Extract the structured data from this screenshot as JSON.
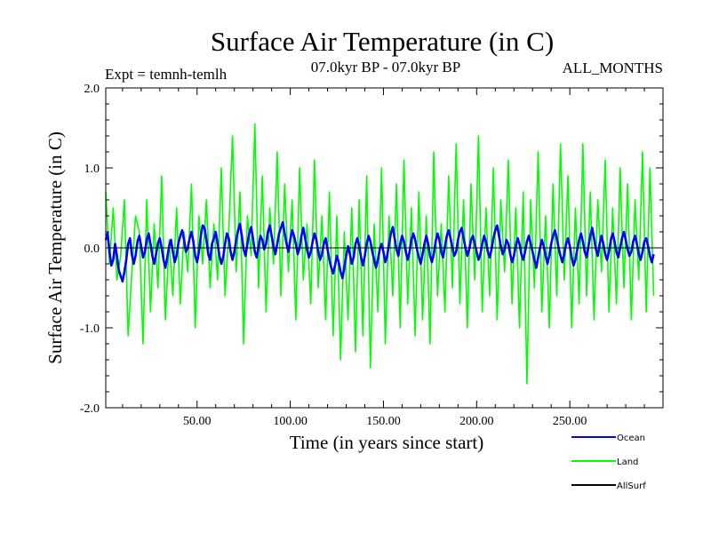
{
  "chart_data": {
    "type": "line",
    "title": "Surface Air Temperature (in C)",
    "subtitle_left": "Expt = temnh-temlh",
    "subtitle_center": "07.0kyr BP - 07.0kyr BP",
    "subtitle_right": "ALL_MONTHS",
    "xlabel": "Time (in years since start)",
    "ylabel": "Surface Air Temperature (in C)",
    "xlim": [
      1,
      300
    ],
    "ylim": [
      -2.0,
      2.0
    ],
    "x_ticks": [
      50,
      100,
      150,
      200,
      250
    ],
    "x_tick_labels": [
      "50.00",
      "100.00",
      "150.00",
      "200.00",
      "250.00"
    ],
    "y_ticks": [
      2.0,
      1.0,
      0.0,
      -1.0,
      -2.0
    ],
    "y_tick_labels": [
      "2.0",
      "1.0",
      "0.0",
      "-1.0",
      "-2.0"
    ],
    "zero_line": true,
    "legend_placement": "bottom-right",
    "series": [
      {
        "name": "Land",
        "color": "#00ff00",
        "x_start": 1,
        "x_step": 2,
        "values": [
          0.7,
          -0.2,
          0.5,
          -0.4,
          -0.1,
          0.6,
          -1.1,
          -0.3,
          0.4,
          0.2,
          -1.2,
          0.6,
          -0.8,
          0.3,
          -0.5,
          0.9,
          -0.9,
          0.1,
          -0.6,
          0.5,
          -0.7,
          0.2,
          -0.3,
          0.8,
          -1.0,
          0.4,
          -0.2,
          0.6,
          -0.5,
          0.3,
          -0.4,
          1.0,
          -0.6,
          0.2,
          1.4,
          -0.3,
          0.7,
          -1.2,
          0.4,
          -0.1,
          1.55,
          -0.5,
          0.9,
          -0.8,
          0.5,
          -0.2,
          1.2,
          -0.6,
          0.8,
          -0.3,
          0.6,
          -0.9,
          1.0,
          -0.4,
          0.3,
          -0.7,
          1.1,
          -0.5,
          0.4,
          -0.9,
          0.7,
          -1.1,
          0.4,
          -1.4,
          0.2,
          -0.9,
          0.5,
          -1.3,
          0.6,
          -1.1,
          0.9,
          -1.5,
          0.3,
          -0.8,
          1.0,
          -1.2,
          0.4,
          -0.6,
          0.8,
          -1.0,
          1.1,
          -0.7,
          0.5,
          -1.1,
          0.7,
          -0.9,
          0.4,
          -1.2,
          1.2,
          -0.6,
          0.3,
          -0.8,
          0.9,
          -0.5,
          1.3,
          -0.7,
          0.6,
          -1.0,
          0.8,
          -0.4,
          1.4,
          -0.8,
          0.5,
          -0.6,
          1.0,
          -0.9,
          0.6,
          -0.3,
          1.1,
          -0.7,
          0.5,
          -1.0,
          0.7,
          -1.7,
          0.6,
          -0.5,
          1.2,
          -0.8,
          0.4,
          -1.0,
          0.8,
          -0.6,
          1.3,
          -0.4,
          0.9,
          -1.0,
          0.5,
          -0.7,
          1.3,
          -0.6,
          0.7,
          -0.9,
          0.6,
          -0.3,
          1.1,
          -0.8,
          0.5,
          -0.7,
          1.0,
          -0.5,
          0.8,
          -0.9,
          0.6,
          -0.4,
          1.2,
          -0.8,
          1.0,
          -0.6
        ]
      },
      {
        "name": "Ocean",
        "color": "#0000ff",
        "x_start": 1,
        "x_step": 1,
        "values": [
          0.1,
          0.18,
          -0.05,
          -0.22,
          -0.15,
          0.05,
          -0.1,
          -0.28,
          -0.35,
          -0.42,
          -0.3,
          -0.15,
          0.05,
          0.12,
          -0.08,
          -0.2,
          -0.1,
          0.08,
          0.15,
          0.02,
          -0.12,
          -0.05,
          0.1,
          0.18,
          0.05,
          -0.1,
          -0.2,
          -0.08,
          0.06,
          0.12,
          0.0,
          -0.15,
          -0.25,
          -0.12,
          0.02,
          0.1,
          -0.05,
          -0.18,
          -0.1,
          0.06,
          0.15,
          0.22,
          0.1,
          -0.05,
          0.0,
          0.12,
          0.2,
          0.08,
          -0.1,
          -0.18,
          -0.05,
          0.15,
          0.28,
          0.25,
          0.1,
          -0.08,
          -0.15,
          0.05,
          0.12,
          0.2,
          0.05,
          -0.1,
          -0.2,
          -0.12,
          0.05,
          0.18,
          0.12,
          -0.05,
          -0.15,
          -0.05,
          0.1,
          0.22,
          0.3,
          0.15,
          -0.02,
          -0.1,
          0.05,
          0.18,
          0.26,
          0.12,
          -0.05,
          -0.12,
          0.02,
          0.15,
          0.1,
          -0.02,
          0.05,
          0.2,
          0.28,
          0.15,
          0.02,
          -0.08,
          0.05,
          0.18,
          0.25,
          0.32,
          0.18,
          0.05,
          -0.05,
          0.1,
          0.22,
          0.15,
          0.05,
          -0.08,
          0.0,
          0.15,
          0.25,
          0.12,
          -0.02,
          -0.12,
          -0.05,
          0.08,
          0.18,
          0.1,
          -0.05,
          -0.15,
          -0.08,
          0.05,
          0.12,
          -0.02,
          -0.15,
          -0.25,
          -0.32,
          -0.22,
          -0.1,
          -0.18,
          -0.3,
          -0.38,
          -0.25,
          -0.1,
          0.02,
          -0.08,
          -0.2,
          -0.12,
          0.05,
          0.12,
          0.02,
          -0.12,
          -0.22,
          -0.1,
          0.05,
          0.15,
          0.08,
          -0.05,
          -0.15,
          -0.25,
          -0.15,
          -0.02,
          0.05,
          -0.05,
          -0.18,
          -0.1,
          0.05,
          0.18,
          0.26,
          0.12,
          -0.02,
          -0.1,
          0.05,
          0.15,
          0.08,
          -0.05,
          -0.15,
          -0.05,
          0.1,
          0.18,
          0.1,
          -0.02,
          -0.12,
          -0.2,
          -0.08,
          0.05,
          0.15,
          0.05,
          -0.1,
          -0.18,
          -0.08,
          0.08,
          0.18,
          0.1,
          -0.05,
          -0.12,
          0.02,
          0.15,
          0.22,
          0.12,
          0.0,
          -0.1,
          -0.05,
          0.1,
          0.2,
          0.25,
          0.12,
          0.0,
          -0.1,
          -0.02,
          0.1,
          0.15,
          0.05,
          -0.05,
          -0.15,
          -0.08,
          0.05,
          0.15,
          0.08,
          -0.05,
          -0.12,
          -0.02,
          0.12,
          0.22,
          0.28,
          0.15,
          0.02,
          -0.08,
          -0.02,
          0.1,
          0.05,
          -0.08,
          -0.18,
          -0.1,
          0.02,
          0.12,
          0.05,
          -0.08,
          -0.15,
          -0.05,
          0.08,
          0.15,
          0.05,
          -0.05,
          -0.15,
          -0.25,
          -0.12,
          0.0,
          0.1,
          0.02,
          -0.1,
          -0.2,
          -0.1,
          0.05,
          0.15,
          0.22,
          0.12,
          0.0,
          -0.1,
          -0.18,
          -0.08,
          0.05,
          0.12,
          0.02,
          -0.12,
          -0.22,
          -0.15,
          -0.02,
          0.1,
          0.18,
          0.08,
          -0.05,
          -0.12,
          0.02,
          0.15,
          0.25,
          0.12,
          -0.02,
          -0.1,
          0.05,
          0.15,
          0.05,
          -0.08,
          -0.15,
          -0.05,
          0.1,
          0.18,
          0.08,
          -0.05,
          -0.12,
          0.0,
          0.12,
          0.2,
          0.1,
          -0.02,
          -0.1,
          -0.05,
          0.08,
          0.15,
          0.05,
          -0.08,
          -0.15,
          -0.05,
          0.08,
          0.12,
          0.02,
          -0.1,
          -0.18,
          -0.08
        ]
      },
      {
        "name": "AllSurf",
        "color": "#000000",
        "values": []
      }
    ]
  }
}
